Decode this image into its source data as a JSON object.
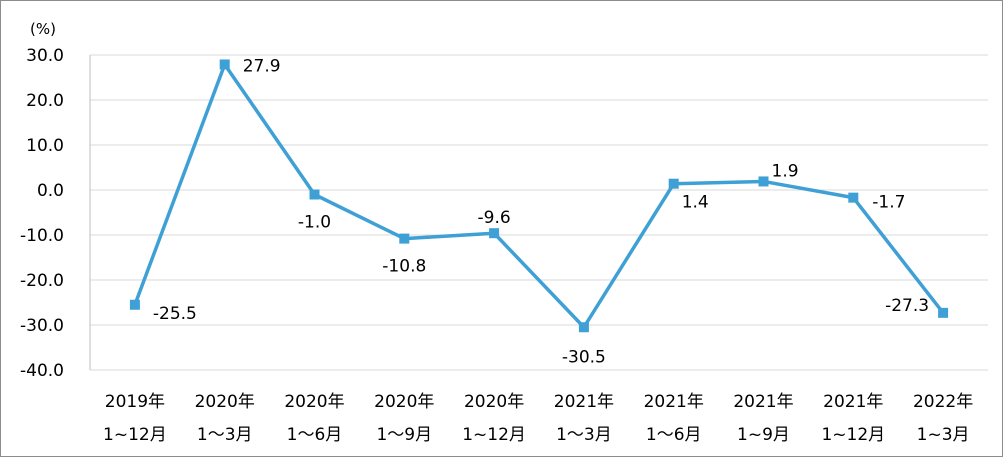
{
  "chart_data": {
    "type": "line",
    "unit_label": "(%)",
    "categories": [
      [
        "2019年",
        "1~12月"
      ],
      [
        "2020年",
        "1～3月"
      ],
      [
        "2020年",
        "1～6月"
      ],
      [
        "2020年",
        "1～9月"
      ],
      [
        "2020年",
        "1~12月"
      ],
      [
        "2021年",
        "1～3月"
      ],
      [
        "2021年",
        "1～6月"
      ],
      [
        "2021年",
        "1~9月"
      ],
      [
        "2021年",
        "1~12月"
      ],
      [
        "2022年",
        "1~3月"
      ]
    ],
    "series": [
      {
        "values": [
          -25.5,
          27.9,
          -1.0,
          -10.8,
          -9.6,
          -30.5,
          1.4,
          1.9,
          -1.7,
          -27.3
        ],
        "labels": [
          "-25.5",
          "27.9",
          "-1.0",
          "-10.8",
          "-9.6",
          "-30.5",
          "1.4",
          "1.9",
          "-1.7",
          "-27.3"
        ]
      }
    ],
    "y_ticks": [
      "30.0",
      "20.0",
      "10.0",
      "0.0",
      "-10.0",
      "-20.0",
      "-30.0",
      "-40.0"
    ],
    "ylim": [
      -40,
      30
    ],
    "grid": true,
    "legend": "none",
    "line_color": "#3fa0d5"
  }
}
